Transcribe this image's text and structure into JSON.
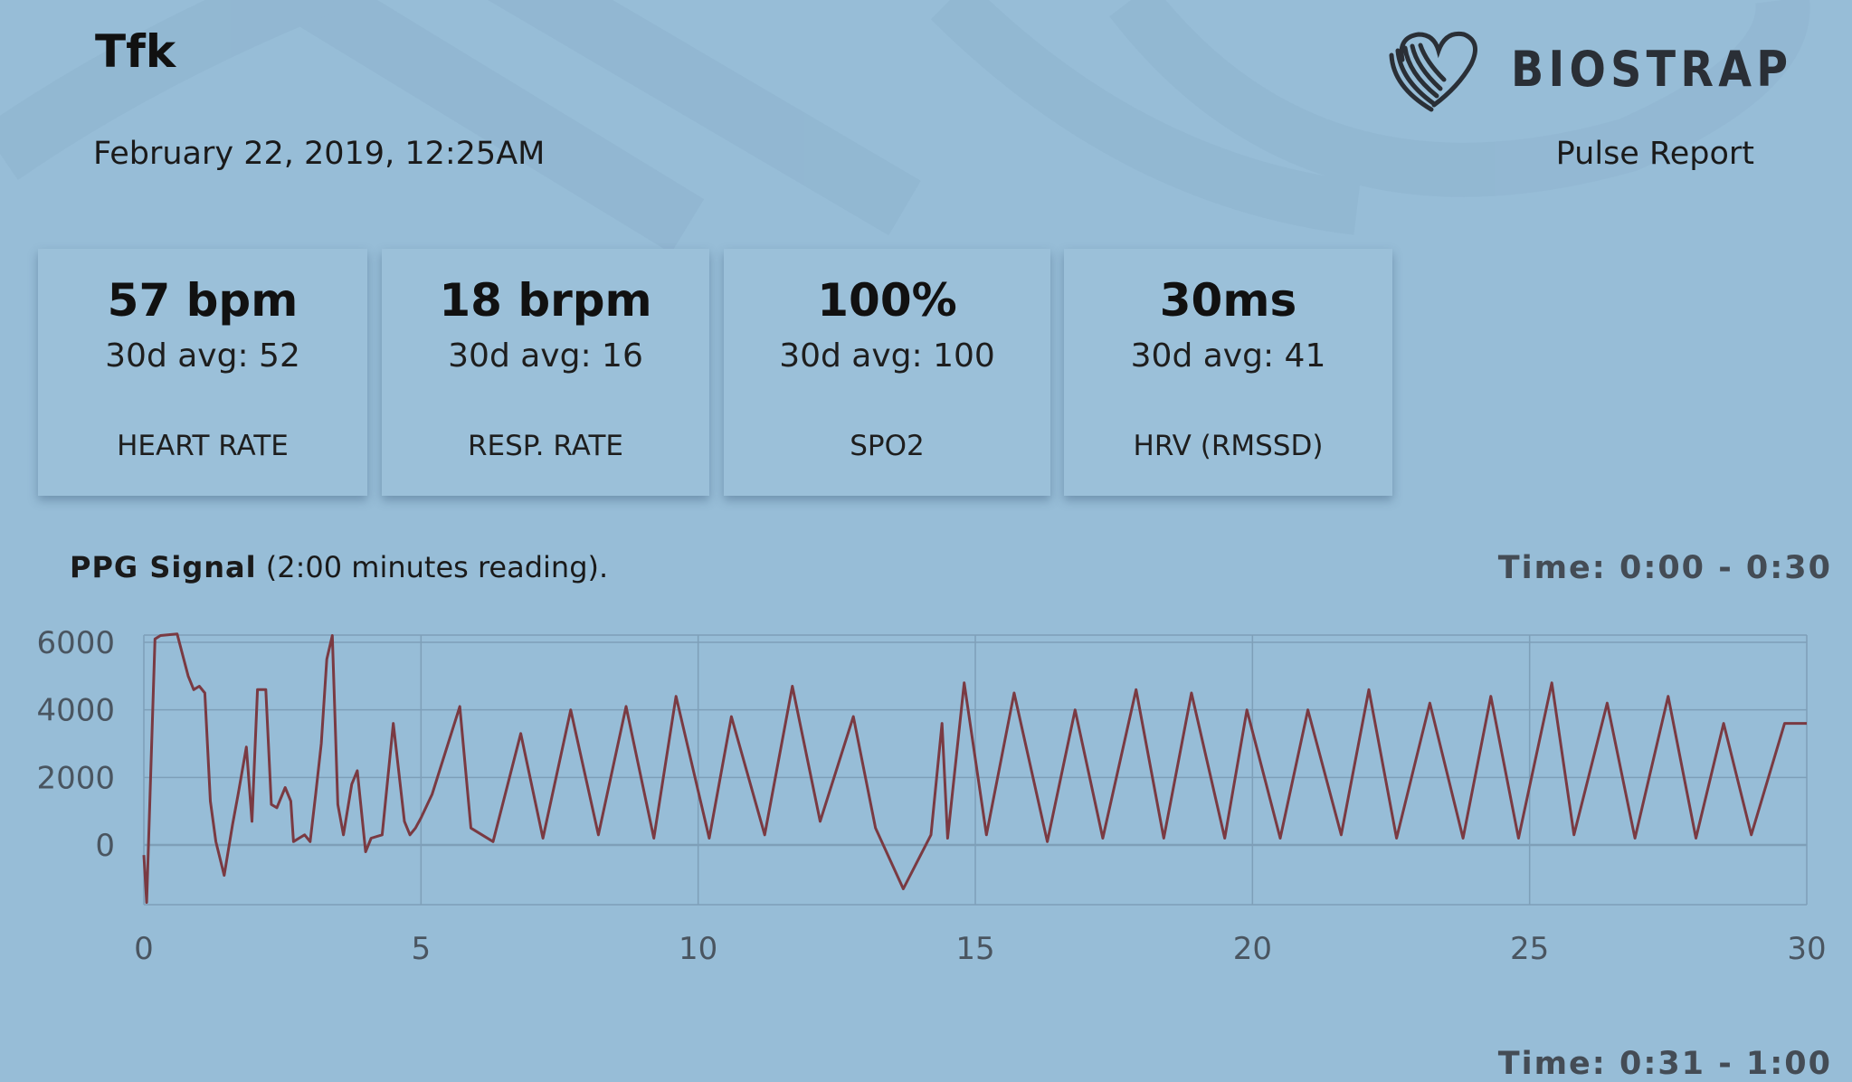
{
  "header": {
    "user_name": "Tfk",
    "date": "February 22, 2019, 12:25AM",
    "brand": "BIOSTRAP",
    "report_type": "Pulse Report"
  },
  "metrics": [
    {
      "value": "57 bpm",
      "avg": "30d avg: 52",
      "label": "HEART RATE"
    },
    {
      "value": "18 brpm",
      "avg": "30d avg: 16",
      "label": "RESP. RATE"
    },
    {
      "value": "100%",
      "avg": "30d avg: 100",
      "label": "SPO2"
    },
    {
      "value": "30ms",
      "avg": "30d avg: 41",
      "label": "HRV (RMSSD)"
    }
  ],
  "ppg": {
    "title_bold": "PPG Signal",
    "title_rest": " (2:00 minutes reading).",
    "time_range": "Time: 0:00 - 0:30",
    "next_time_range": "Time: 0:31 - 1:00"
  },
  "colors": {
    "background": "#97bdd7",
    "signal_line": "#7a3a42",
    "grid": "#7e9fb8"
  },
  "chart_data": {
    "type": "line",
    "title": "PPG Signal",
    "xlim": [
      0,
      30
    ],
    "ylim": [
      -1800,
      6300
    ],
    "x_ticks": [
      "0",
      "5",
      "10",
      "15",
      "20",
      "25",
      "30"
    ],
    "y_ticks": [
      "6000",
      "4000",
      "2000",
      "0"
    ],
    "grid": true,
    "series": [
      {
        "x": [
          0,
          0.05,
          0.2,
          0.3,
          0.6,
          0.8,
          0.9,
          1.0,
          1.1,
          1.2,
          1.3,
          1.45,
          1.6,
          1.7,
          1.85,
          1.95,
          2.05,
          2.2,
          2.3,
          2.4,
          2.55,
          2.65,
          2.7,
          2.8,
          2.9,
          3.0,
          3.1,
          3.2,
          3.3,
          3.4,
          3.5,
          3.6,
          3.75,
          3.85,
          4.0,
          4.1,
          4.3,
          4.5,
          4.7,
          4.8,
          4.9,
          5.0,
          5.2,
          5.7,
          5.9,
          6.3,
          6.8,
          7.2,
          7.7,
          8.2,
          8.7,
          9.2,
          9.6,
          10.2,
          10.6,
          11.2,
          11.7,
          12.2,
          12.8,
          13.2,
          13.7,
          14.2,
          14.4,
          14.5,
          14.8,
          15.2,
          15.7,
          16.3,
          16.8,
          17.3,
          17.9,
          18.4,
          18.9,
          19.5,
          19.9,
          20.5,
          21.0,
          21.6,
          22.1,
          22.6,
          23.2,
          23.8,
          24.3,
          24.8,
          25.4,
          25.8,
          26.4,
          26.9,
          27.5,
          28.0,
          28.5,
          29.0,
          29.6,
          30.0
        ],
        "y": [
          -300,
          -1700,
          6100,
          6200,
          6250,
          5000,
          4600,
          4700,
          4500,
          1300,
          100,
          -900,
          600,
          1500,
          2900,
          700,
          4600,
          4600,
          1200,
          1100,
          1700,
          1300,
          100,
          200,
          300,
          100,
          1500,
          3000,
          5500,
          6200,
          1200,
          300,
          1800,
          2200,
          -200,
          200,
          300,
          3600,
          700,
          300,
          500,
          800,
          1500,
          4100,
          500,
          100,
          3300,
          200,
          4000,
          300,
          4100,
          200,
          4400,
          200,
          3800,
          300,
          4700,
          700,
          3800,
          500,
          -1300,
          300,
          3600,
          200,
          4800,
          300,
          4500,
          100,
          4000,
          200,
          4600,
          200,
          4500,
          200,
          4000,
          200,
          4000,
          300,
          4600,
          200,
          4200,
          200,
          4400,
          200,
          4800,
          300,
          4200,
          200,
          4400,
          200,
          3600,
          300,
          3600,
          3600
        ]
      }
    ]
  }
}
